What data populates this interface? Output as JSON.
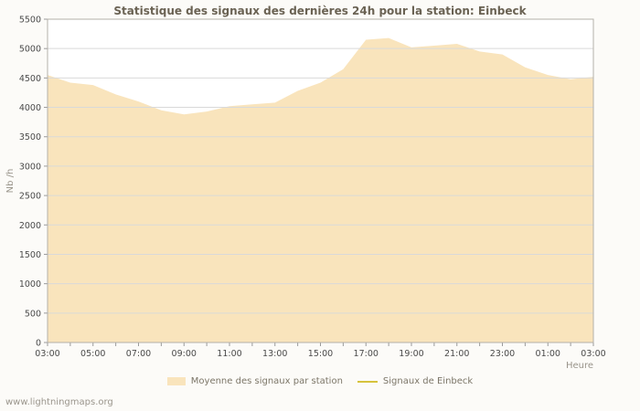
{
  "page": {
    "watermark": "www.lightningmaps.org"
  },
  "chart_data": {
    "type": "area",
    "title": "Statistique des signaux des dernières 24h pour la station: Einbeck",
    "xlabel": "Heure",
    "ylabel": "Nb /h",
    "ylim": [
      0,
      5500
    ],
    "y_ticks": [
      0,
      500,
      1000,
      1500,
      2000,
      2500,
      3000,
      3500,
      4000,
      4500,
      5000,
      5500
    ],
    "x_tick_labels": [
      "03:00",
      "05:00",
      "07:00",
      "09:00",
      "11:00",
      "13:00",
      "15:00",
      "17:00",
      "19:00",
      "21:00",
      "23:00",
      "01:00",
      "03:00"
    ],
    "categories": [
      "03:00",
      "04:00",
      "05:00",
      "06:00",
      "07:00",
      "08:00",
      "09:00",
      "10:00",
      "11:00",
      "12:00",
      "13:00",
      "14:00",
      "15:00",
      "16:00",
      "17:00",
      "18:00",
      "19:00",
      "20:00",
      "21:00",
      "22:00",
      "23:00",
      "00:00",
      "01:00",
      "02:00",
      "03:00"
    ],
    "grid": "horizontal",
    "legend_position": "bottom",
    "series": [
      {
        "name": "Moyenne des signaux par station",
        "type": "area",
        "color": "#f9e4bc",
        "values": [
          4550,
          4420,
          4380,
          4220,
          4100,
          3950,
          3880,
          3930,
          4020,
          4050,
          4080,
          4280,
          4420,
          4650,
          5150,
          5180,
          5020,
          5050,
          5080,
          4950,
          4900,
          4680,
          4550,
          4480,
          4520
        ]
      },
      {
        "name": "Signaux de Einbeck",
        "type": "line",
        "color": "#d6c33c",
        "values": []
      }
    ],
    "colors": {
      "grid": "#d9d9d9",
      "plot_border": "#b3b0aa",
      "tick_text": "#4a4a4a",
      "axis_label_text": "#99948a",
      "plot_background": "#ffffff"
    }
  }
}
